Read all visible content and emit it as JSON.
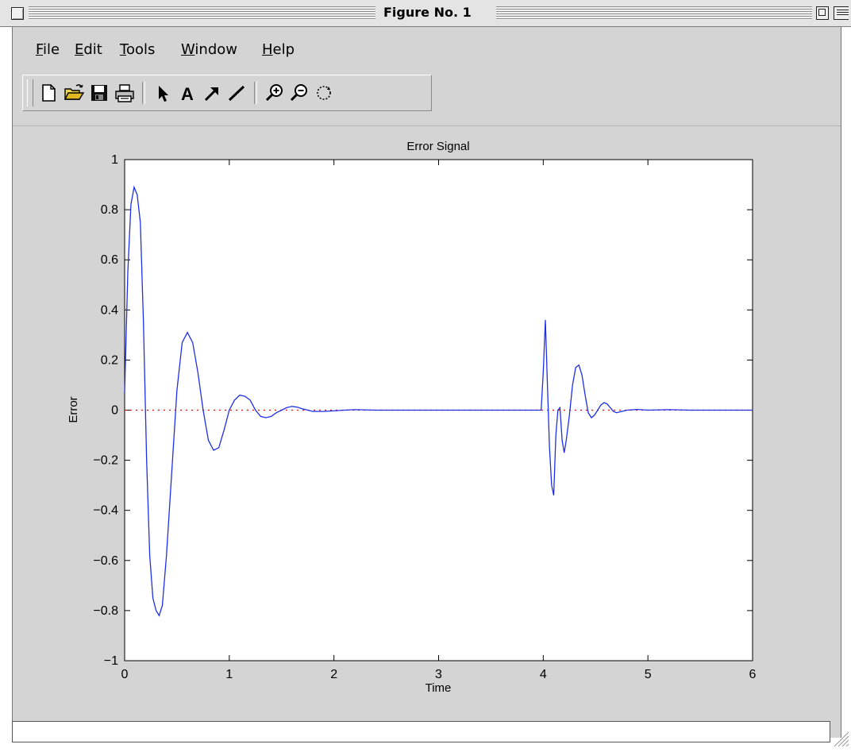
{
  "window": {
    "title": "Figure No. 1"
  },
  "menu": {
    "items": [
      "File",
      "Edit",
      "Tools",
      "Window",
      "Help"
    ]
  },
  "toolbar": {
    "icons": [
      "new-file-icon",
      "open-folder-icon",
      "save-icon",
      "print-icon",
      "select-arrow-icon",
      "insert-text-icon",
      "insert-arrow-icon",
      "insert-line-icon",
      "zoom-in-icon",
      "zoom-out-icon",
      "rotate-3d-icon"
    ]
  },
  "colors": {
    "signal_line": "#1f2fe8",
    "zero_line": "#ff0000",
    "figure_bg": "#d4d4d4",
    "axes_bg": "#ffffff"
  },
  "chart_data": {
    "type": "line",
    "title": "Error Signal",
    "xlabel": "Time",
    "ylabel": "Error",
    "xlim": [
      0,
      6
    ],
    "ylim": [
      -1,
      1
    ],
    "xticks": [
      "0",
      "1",
      "2",
      "3",
      "4",
      "5",
      "6"
    ],
    "yticks": [
      "−1",
      "−0.8",
      "−0.6",
      "−0.4",
      "−0.2",
      "0",
      "0.2",
      "0.4",
      "0.6",
      "0.8",
      "1"
    ],
    "grid": false,
    "series": [
      {
        "style": "solid",
        "color": "#1f2fe8",
        "x": [
          0,
          0.03,
          0.06,
          0.09,
          0.12,
          0.15,
          0.18,
          0.21,
          0.24,
          0.27,
          0.3,
          0.33,
          0.36,
          0.4,
          0.45,
          0.5,
          0.55,
          0.6,
          0.65,
          0.7,
          0.75,
          0.8,
          0.85,
          0.9,
          0.95,
          1.0,
          1.05,
          1.1,
          1.15,
          1.2,
          1.25,
          1.3,
          1.35,
          1.4,
          1.45,
          1.5,
          1.55,
          1.6,
          1.65,
          1.7,
          1.75,
          1.8,
          1.9,
          2.0,
          2.1,
          2.2,
          2.4,
          2.6,
          2.8,
          3.0,
          3.2,
          3.4,
          3.6,
          3.8,
          3.98,
          4.0,
          4.02,
          4.04,
          4.06,
          4.08,
          4.1,
          4.12,
          4.14,
          4.16,
          4.18,
          4.2,
          4.22,
          4.25,
          4.28,
          4.31,
          4.34,
          4.37,
          4.4,
          4.43,
          4.46,
          4.49,
          4.52,
          4.55,
          4.58,
          4.61,
          4.64,
          4.67,
          4.7,
          4.75,
          4.8,
          4.9,
          5.0,
          5.2,
          5.4,
          5.6,
          5.8,
          6.0
        ],
        "y": [
          0.07,
          0.55,
          0.82,
          0.89,
          0.86,
          0.75,
          0.35,
          -0.2,
          -0.58,
          -0.75,
          -0.8,
          -0.82,
          -0.78,
          -0.58,
          -0.25,
          0.08,
          0.27,
          0.31,
          0.27,
          0.15,
          0.0,
          -0.12,
          -0.16,
          -0.15,
          -0.08,
          0.0,
          0.04,
          0.06,
          0.055,
          0.04,
          0.0,
          -0.025,
          -0.03,
          -0.025,
          -0.01,
          0.0,
          0.01,
          0.015,
          0.012,
          0.005,
          0.0,
          -0.005,
          -0.005,
          -0.003,
          0.0,
          0.002,
          0.0,
          0.0,
          0.0,
          0.0,
          0.0,
          0.0,
          0.0,
          0.0,
          0.0,
          0.15,
          0.36,
          0.1,
          -0.15,
          -0.3,
          -0.34,
          -0.1,
          0.0,
          0.01,
          -0.12,
          -0.17,
          -0.12,
          -0.02,
          0.1,
          0.17,
          0.18,
          0.14,
          0.06,
          -0.01,
          -0.03,
          -0.02,
          0.0,
          0.02,
          0.03,
          0.025,
          0.01,
          -0.005,
          -0.01,
          -0.005,
          0.0,
          0.003,
          0.0,
          0.002,
          0.0,
          0.0,
          0.0,
          0.0
        ]
      },
      {
        "style": "dotted",
        "color": "#ff0000",
        "x": [
          0,
          6
        ],
        "y": [
          0,
          0
        ]
      }
    ]
  }
}
